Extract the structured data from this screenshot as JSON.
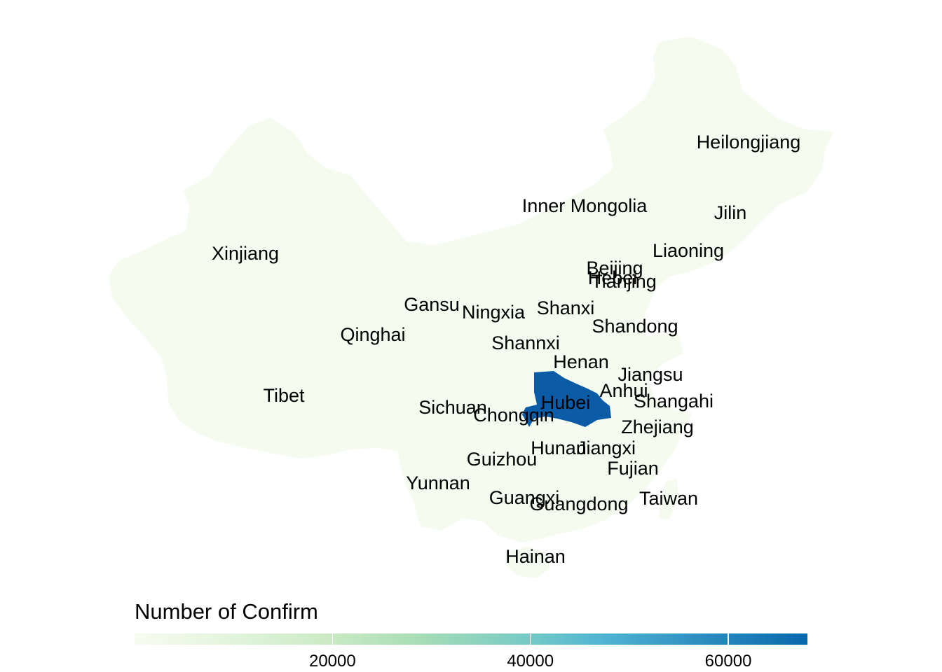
{
  "legend": {
    "title": "Number of Confirm",
    "min": 0,
    "max": 68000,
    "ticks": [
      20000,
      40000,
      60000
    ],
    "low_color": "#f7fcf0",
    "high_color": "#0868ac"
  },
  "colors": {
    "land": "#f5fbef",
    "highlight": "#0b5ba6"
  },
  "provinces": [
    {
      "name": "Heilongjiang"
    },
    {
      "name": "Inner Mongolia"
    },
    {
      "name": "Jilin"
    },
    {
      "name": "Xinjiang"
    },
    {
      "name": "Liaoning"
    },
    {
      "name": "Beijing"
    },
    {
      "name": "Hebei"
    },
    {
      "name": "Tianjing"
    },
    {
      "name": "Gansu"
    },
    {
      "name": "Ningxia"
    },
    {
      "name": "Shanxi"
    },
    {
      "name": "Shandong"
    },
    {
      "name": "Qinghai"
    },
    {
      "name": "Shannxi"
    },
    {
      "name": "Henan"
    },
    {
      "name": "Jiangsu"
    },
    {
      "name": "Anhui"
    },
    {
      "name": "Tibet"
    },
    {
      "name": "Hubei",
      "highlighted": true
    },
    {
      "name": "Shangahi"
    },
    {
      "name": "Sichuan"
    },
    {
      "name": "Chongqin"
    },
    {
      "name": "Zhejiang"
    },
    {
      "name": "Hunan"
    },
    {
      "name": "Jiangxi"
    },
    {
      "name": "Guizhou"
    },
    {
      "name": "Fujian"
    },
    {
      "name": "Yunnan"
    },
    {
      "name": "Guangxi"
    },
    {
      "name": "Taiwan"
    },
    {
      "name": "Guangdong"
    },
    {
      "name": "Hainan"
    }
  ]
}
